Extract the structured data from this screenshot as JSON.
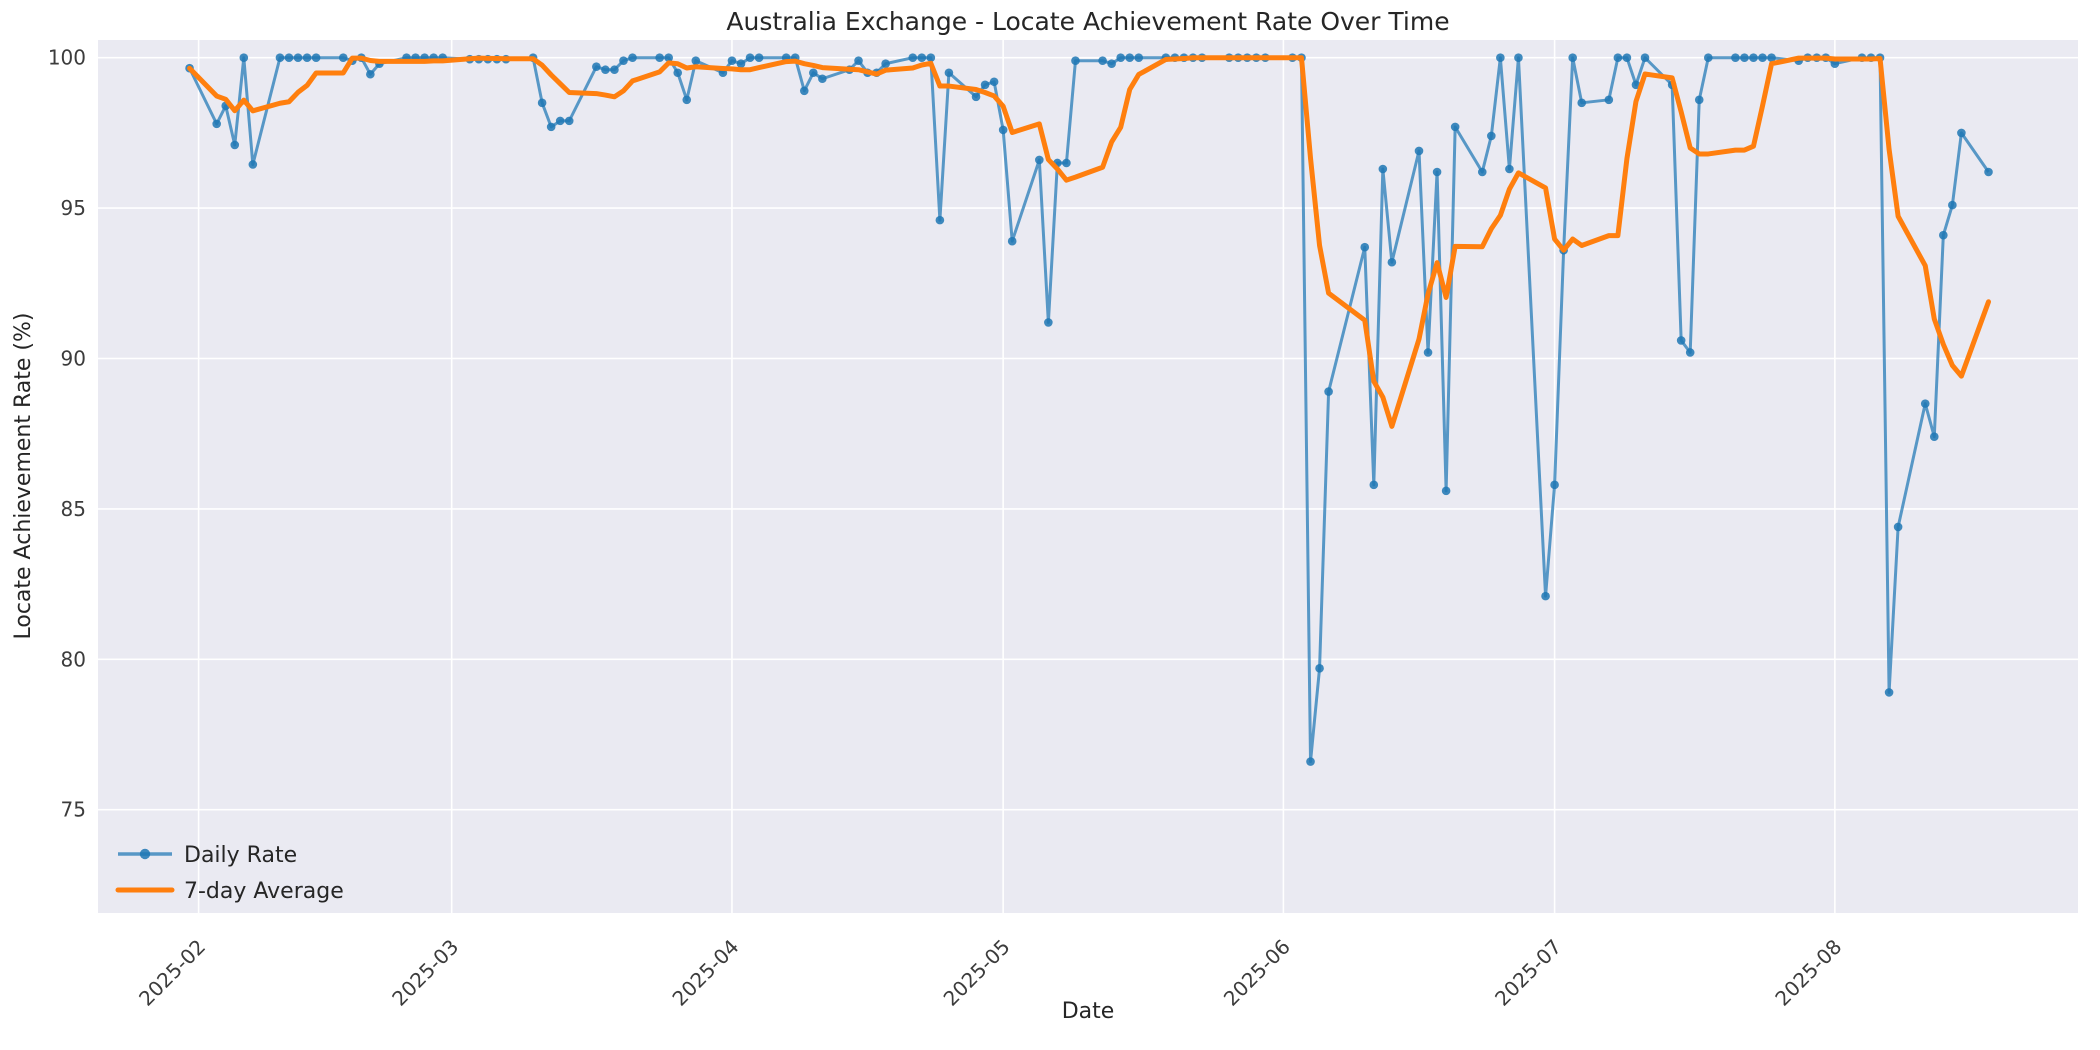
{
  "figure": {
    "background": "#ffffff",
    "plot_background": "#eaeaf2",
    "grid_color": "#ffffff",
    "text_color": "#262626",
    "tick_color": "#3c3c3c"
  },
  "chart_data": {
    "type": "line",
    "title": "Australia Exchange - Locate Achievement Rate Over Time",
    "xlabel": "Date",
    "ylabel": "Locate Achievement Rate (%)",
    "grid": true,
    "legend_position": "lower left",
    "ylim": [
      71.6,
      100.6
    ],
    "xlim": [
      "2025-01-21",
      "2025-08-28"
    ],
    "y_ticks": [
      75,
      80,
      85,
      90,
      95,
      100
    ],
    "x_ticks": [
      {
        "label": "2025-02",
        "date": "2025-02-01"
      },
      {
        "label": "2025-03",
        "date": "2025-03-01"
      },
      {
        "label": "2025-04",
        "date": "2025-04-01"
      },
      {
        "label": "2025-05",
        "date": "2025-05-01"
      },
      {
        "label": "2025-06",
        "date": "2025-06-01"
      },
      {
        "label": "2025-07",
        "date": "2025-07-01"
      },
      {
        "label": "2025-08",
        "date": "2025-08-01"
      }
    ],
    "series": [
      {
        "name": "Daily Rate",
        "style": "line+markers",
        "color": "#1f77b4",
        "opacity": 0.72,
        "marker_opacity": 0.85,
        "points": [
          [
            "2025-01-31",
            99.65
          ],
          [
            "2025-02-03",
            97.8
          ],
          [
            "2025-02-04",
            98.4
          ],
          [
            "2025-02-05",
            97.1
          ],
          [
            "2025-02-06",
            100
          ],
          [
            "2025-02-07",
            96.45
          ],
          [
            "2025-02-10",
            100
          ],
          [
            "2025-02-11",
            100
          ],
          [
            "2025-02-12",
            100
          ],
          [
            "2025-02-13",
            100
          ],
          [
            "2025-02-14",
            100
          ],
          [
            "2025-02-17",
            100
          ],
          [
            "2025-02-18",
            99.9
          ],
          [
            "2025-02-19",
            100
          ],
          [
            "2025-02-20",
            99.45
          ],
          [
            "2025-02-21",
            99.8
          ],
          [
            "2025-02-24",
            100
          ],
          [
            "2025-02-25",
            100
          ],
          [
            "2025-02-26",
            100
          ],
          [
            "2025-02-27",
            100
          ],
          [
            "2025-02-28",
            100
          ],
          [
            "2025-03-03",
            99.95
          ],
          [
            "2025-03-04",
            99.95
          ],
          [
            "2025-03-05",
            99.95
          ],
          [
            "2025-03-06",
            99.95
          ],
          [
            "2025-03-07",
            99.95
          ],
          [
            "2025-03-10",
            100
          ],
          [
            "2025-03-11",
            98.5
          ],
          [
            "2025-03-12",
            97.7
          ],
          [
            "2025-03-13",
            97.9
          ],
          [
            "2025-03-14",
            97.9
          ],
          [
            "2025-03-17",
            99.7
          ],
          [
            "2025-03-18",
            99.6
          ],
          [
            "2025-03-19",
            99.6
          ],
          [
            "2025-03-20",
            99.9
          ],
          [
            "2025-03-21",
            100
          ],
          [
            "2025-03-24",
            100
          ],
          [
            "2025-03-25",
            100
          ],
          [
            "2025-03-26",
            99.5
          ],
          [
            "2025-03-27",
            98.6
          ],
          [
            "2025-03-28",
            99.9
          ],
          [
            "2025-03-31",
            99.5
          ],
          [
            "2025-04-01",
            99.9
          ],
          [
            "2025-04-02",
            99.8
          ],
          [
            "2025-04-03",
            100
          ],
          [
            "2025-04-04",
            100
          ],
          [
            "2025-04-07",
            100
          ],
          [
            "2025-04-08",
            100
          ],
          [
            "2025-04-09",
            98.9
          ],
          [
            "2025-04-10",
            99.5
          ],
          [
            "2025-04-11",
            99.3
          ],
          [
            "2025-04-14",
            99.6
          ],
          [
            "2025-04-15",
            99.9
          ],
          [
            "2025-04-16",
            99.5
          ],
          [
            "2025-04-17",
            99.5
          ],
          [
            "2025-04-18",
            99.8
          ],
          [
            "2025-04-21",
            100
          ],
          [
            "2025-04-22",
            100
          ],
          [
            "2025-04-23",
            100
          ],
          [
            "2025-04-24",
            94.6
          ],
          [
            "2025-04-25",
            99.5
          ],
          [
            "2025-04-28",
            98.7
          ],
          [
            "2025-04-29",
            99.1
          ],
          [
            "2025-04-30",
            99.2
          ],
          [
            "2025-05-01",
            97.6
          ],
          [
            "2025-05-02",
            93.9
          ],
          [
            "2025-05-05",
            96.6
          ],
          [
            "2025-05-06",
            91.2
          ],
          [
            "2025-05-07",
            96.5
          ],
          [
            "2025-05-08",
            96.5
          ],
          [
            "2025-05-09",
            99.9
          ],
          [
            "2025-05-12",
            99.9
          ],
          [
            "2025-05-13",
            99.8
          ],
          [
            "2025-05-14",
            100
          ],
          [
            "2025-05-15",
            100
          ],
          [
            "2025-05-16",
            100
          ],
          [
            "2025-05-19",
            100
          ],
          [
            "2025-05-20",
            100
          ],
          [
            "2025-05-21",
            100
          ],
          [
            "2025-05-22",
            100
          ],
          [
            "2025-05-23",
            100
          ],
          [
            "2025-05-26",
            100
          ],
          [
            "2025-05-27",
            100
          ],
          [
            "2025-05-28",
            100
          ],
          [
            "2025-05-29",
            100
          ],
          [
            "2025-05-30",
            100
          ],
          [
            "2025-06-02",
            100
          ],
          [
            "2025-06-03",
            100
          ],
          [
            "2025-06-04",
            76.6
          ],
          [
            "2025-06-05",
            79.7
          ],
          [
            "2025-06-06",
            88.9
          ],
          [
            "2025-06-10",
            93.7
          ],
          [
            "2025-06-11",
            85.8
          ],
          [
            "2025-06-12",
            96.3
          ],
          [
            "2025-06-13",
            93.2
          ],
          [
            "2025-06-16",
            96.9
          ],
          [
            "2025-06-17",
            90.2
          ],
          [
            "2025-06-18",
            96.2
          ],
          [
            "2025-06-19",
            85.6
          ],
          [
            "2025-06-20",
            97.7
          ],
          [
            "2025-06-23",
            96.2
          ],
          [
            "2025-06-24",
            97.4
          ],
          [
            "2025-06-25",
            100
          ],
          [
            "2025-06-26",
            96.3
          ],
          [
            "2025-06-27",
            100
          ],
          [
            "2025-06-30",
            82.1
          ],
          [
            "2025-07-01",
            85.8
          ],
          [
            "2025-07-02",
            93.6
          ],
          [
            "2025-07-03",
            100
          ],
          [
            "2025-07-04",
            98.5
          ],
          [
            "2025-07-07",
            98.6
          ],
          [
            "2025-07-08",
            100
          ],
          [
            "2025-07-09",
            100
          ],
          [
            "2025-07-10",
            99.1
          ],
          [
            "2025-07-11",
            100
          ],
          [
            "2025-07-14",
            99.1
          ],
          [
            "2025-07-15",
            90.6
          ],
          [
            "2025-07-16",
            90.2
          ],
          [
            "2025-07-17",
            98.6
          ],
          [
            "2025-07-18",
            100
          ],
          [
            "2025-07-21",
            100
          ],
          [
            "2025-07-22",
            100
          ],
          [
            "2025-07-23",
            100
          ],
          [
            "2025-07-24",
            100
          ],
          [
            "2025-07-25",
            100
          ],
          [
            "2025-07-28",
            99.9
          ],
          [
            "2025-07-29",
            100
          ],
          [
            "2025-07-30",
            100
          ],
          [
            "2025-07-31",
            100
          ],
          [
            "2025-08-01",
            99.8
          ],
          [
            "2025-08-04",
            100
          ],
          [
            "2025-08-05",
            100
          ],
          [
            "2025-08-06",
            100
          ],
          [
            "2025-08-07",
            78.9
          ],
          [
            "2025-08-08",
            84.4
          ],
          [
            "2025-08-11",
            88.5
          ],
          [
            "2025-08-12",
            87.4
          ],
          [
            "2025-08-13",
            94.1
          ],
          [
            "2025-08-14",
            95.1
          ],
          [
            "2025-08-15",
            97.5
          ],
          [
            "2025-08-18",
            96.2
          ]
        ]
      },
      {
        "name": "7-day Average",
        "style": "line",
        "color": "#ff7f0e",
        "opacity": 1,
        "derived": "rolling_mean_of_series_0",
        "window": 7
      }
    ]
  }
}
